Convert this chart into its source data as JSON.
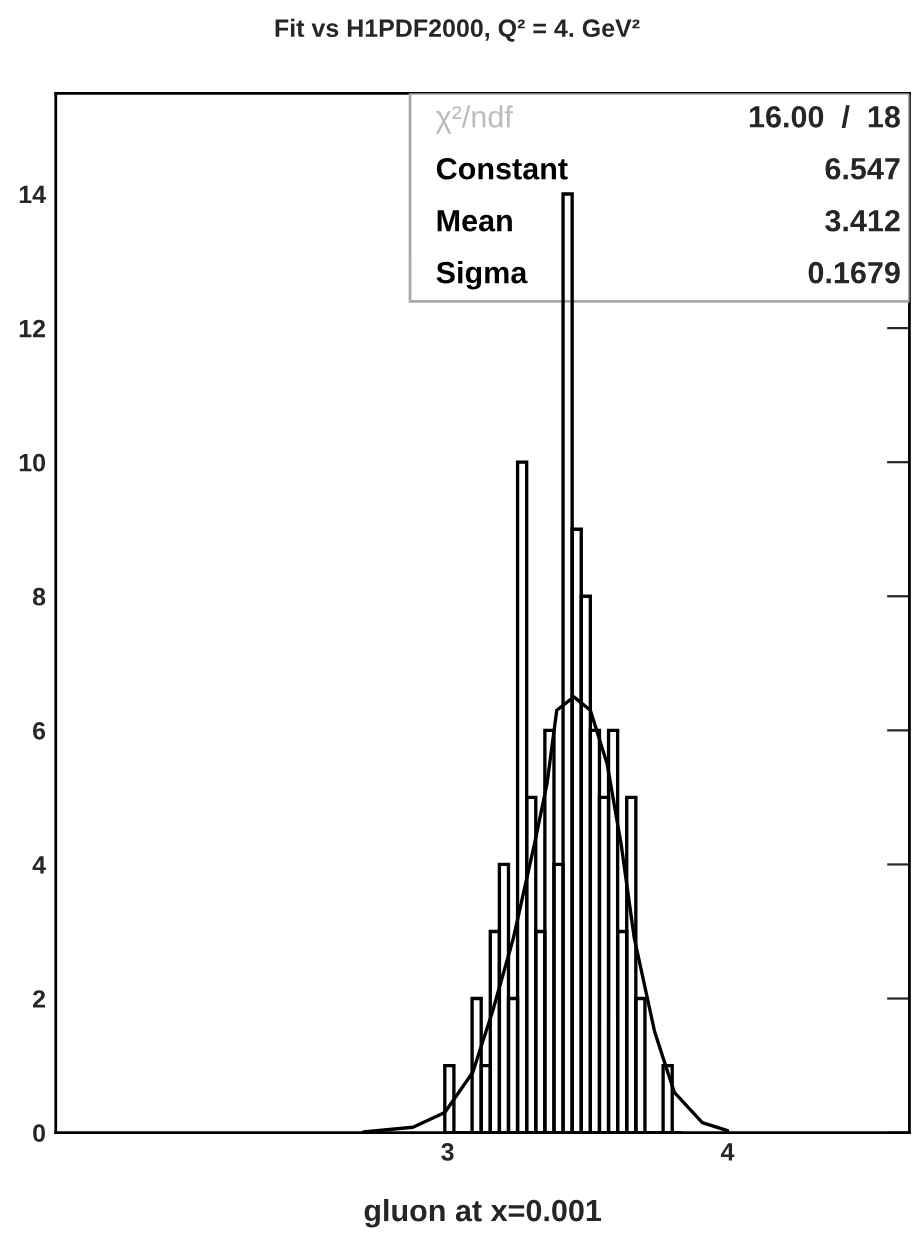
{
  "chart_data": {
    "type": "histogram",
    "title": "Fit vs H1PDF2000, Q² = 4. GeV²",
    "xlabel": "gluon at x=0.001",
    "bins": [
      2.99,
      3.0225,
      3.055,
      3.0875,
      3.12,
      3.1525,
      3.185,
      3.2175,
      3.25,
      3.2825,
      3.315,
      3.3475,
      3.38,
      3.4125,
      3.445,
      3.4775,
      3.51,
      3.5425,
      3.575,
      3.6075,
      3.64,
      3.6725,
      3.705,
      3.7375,
      3.77,
      3.8025,
      3.835
    ],
    "values": [
      1,
      0,
      0,
      2,
      1,
      3,
      4,
      2,
      10,
      5,
      3,
      6,
      4,
      14,
      9,
      8,
      6,
      5,
      6,
      3,
      5,
      2,
      0,
      0,
      1,
      0
    ],
    "color": "#000000",
    "series": [
      {
        "type": "line",
        "color": "#000000",
        "x": [
          2.7,
          2.876,
          2.99,
          3.09,
          3.16,
          3.235,
          3.31,
          3.355,
          3.39,
          3.451,
          3.51,
          3.57,
          3.62,
          3.667,
          3.74,
          3.81,
          3.91,
          4.0
        ],
        "values": [
          0.01,
          0.08,
          0.3,
          0.9,
          1.8,
          2.9,
          4.3,
          5.2,
          6.3,
          6.5,
          6.3,
          5.5,
          4.3,
          2.9,
          1.5,
          0.6,
          0.15,
          0.03
        ]
      }
    ],
    "annotations": [
      "χ²/ndf",
      "16.00  /  18",
      "Constant",
      "6.547",
      "Mean",
      "3.412",
      "Sigma",
      "0.1679"
    ],
    "xlim": [
      1.6,
      4.65
    ],
    "ylim": [
      0,
      15.5
    ],
    "xticks": [
      3,
      4
    ],
    "yticks": [
      0,
      2,
      4,
      6,
      8,
      10,
      12,
      14
    ],
    "grid": false,
    "legend": false
  }
}
